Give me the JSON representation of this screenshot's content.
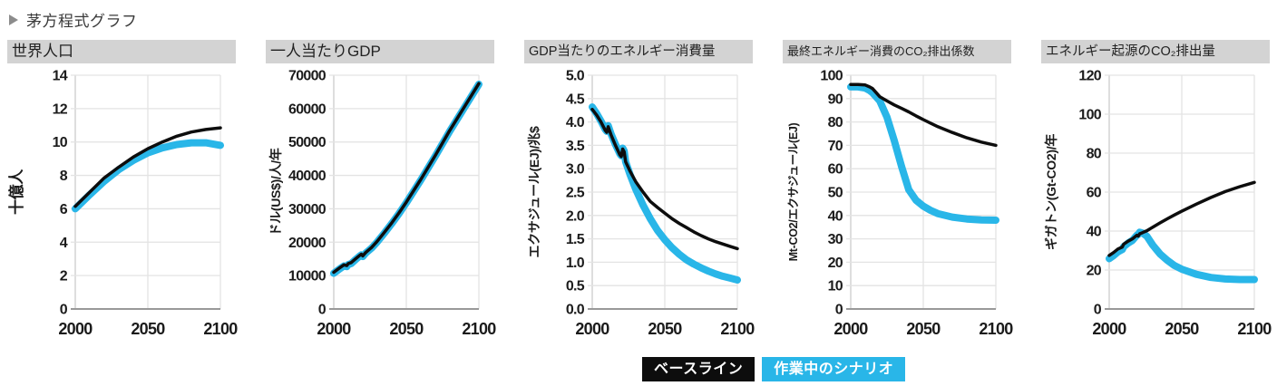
{
  "header": {
    "title": "茅方程式グラフ"
  },
  "colors": {
    "background": "#ffffff",
    "panel_title_bg": "#d3d3d3",
    "panel_title_text": "#222222",
    "grid": "#e3e3e3",
    "axis": "#999999",
    "left_axis": "#cccccc",
    "tick_text": "#1b1b1b",
    "baseline": "#0d0d0d",
    "scenario": "#29b6e8"
  },
  "legend": {
    "items": [
      {
        "label": "ベースライン",
        "color": "#0d0d0d",
        "text_color": "#ffffff"
      },
      {
        "label": "作業中のシナリオ",
        "color": "#29b6e8",
        "text_color": "#ffffff"
      }
    ]
  },
  "chart_data": [
    {
      "type": "line",
      "title": "世界人口",
      "ylabel": "十億人",
      "ylim": [
        0,
        14
      ],
      "ytick_step": 2,
      "y_decimals": 0,
      "xlim": [
        2000,
        2100
      ],
      "xticks": [
        2000,
        2050,
        2100
      ],
      "grid": true,
      "legend_position": "shared-bottom",
      "series": [
        {
          "name": "ベースライン",
          "color": "#0d0d0d",
          "width": 3.5,
          "x": [
            2000,
            2010,
            2020,
            2030,
            2040,
            2050,
            2060,
            2070,
            2080,
            2090,
            2100
          ],
          "y": [
            6.15,
            7.0,
            7.85,
            8.5,
            9.1,
            9.6,
            10.0,
            10.35,
            10.6,
            10.75,
            10.85
          ]
        },
        {
          "name": "作業中のシナリオ",
          "color": "#29b6e8",
          "width": 8,
          "x": [
            2000,
            2010,
            2020,
            2030,
            2040,
            2050,
            2060,
            2070,
            2080,
            2090,
            2100
          ],
          "y": [
            6.0,
            6.85,
            7.65,
            8.35,
            8.9,
            9.35,
            9.65,
            9.85,
            9.95,
            9.95,
            9.8
          ]
        }
      ]
    },
    {
      "type": "line",
      "title": "一人当たりGDP",
      "ylabel": "ドル(US$)/人/年",
      "ylim": [
        0,
        70000
      ],
      "ytick_step": 10000,
      "y_decimals": 0,
      "xlim": [
        2000,
        2100
      ],
      "xticks": [
        2000,
        2050,
        2100
      ],
      "grid": true,
      "legend_position": "shared-bottom",
      "series": [
        {
          "name": "ベースライン",
          "color": "#0d0d0d",
          "width": 3.5,
          "x": [
            2000,
            2004,
            2007,
            2009,
            2010,
            2012,
            2015,
            2018,
            2019,
            2020,
            2022,
            2026,
            2030,
            2035,
            2040,
            2045,
            2050,
            2060,
            2070,
            2080,
            2090,
            2100
          ],
          "y": [
            11000,
            12300,
            13200,
            13000,
            13600,
            13900,
            15000,
            16100,
            16400,
            15900,
            16900,
            18400,
            20300,
            23000,
            25800,
            28800,
            32000,
            38800,
            46000,
            53500,
            60500,
            67500
          ]
        },
        {
          "name": "作業中のシナリオ",
          "color": "#29b6e8",
          "width": 8,
          "x": [
            2000,
            2004,
            2007,
            2009,
            2010,
            2012,
            2015,
            2018,
            2019,
            2020,
            2022,
            2026,
            2030,
            2035,
            2040,
            2045,
            2050,
            2060,
            2070,
            2080,
            2090,
            2100
          ],
          "y": [
            10700,
            12000,
            12900,
            12700,
            13300,
            13600,
            14800,
            15900,
            16200,
            15700,
            16700,
            18200,
            20100,
            22800,
            25600,
            28600,
            31800,
            38600,
            45800,
            53300,
            60300,
            67300
          ]
        }
      ]
    },
    {
      "type": "line",
      "title": "GDP当たりのエネルギー消費量",
      "ylabel": "エクサジュール(EJ)/兆$",
      "ylim": [
        0,
        5
      ],
      "ytick_step": 0.5,
      "y_decimals": 1,
      "xlim": [
        2000,
        2100
      ],
      "xticks": [
        2000,
        2050,
        2100
      ],
      "grid": true,
      "legend_position": "shared-bottom",
      "series": [
        {
          "name": "ベースライン",
          "color": "#0d0d0d",
          "width": 3.5,
          "x": [
            2000,
            2003,
            2006,
            2009,
            2010,
            2011,
            2013,
            2016,
            2019,
            2020,
            2021,
            2022,
            2023,
            2026,
            2030,
            2035,
            2040,
            2045,
            2050,
            2055,
            2060,
            2065,
            2070,
            2075,
            2080,
            2085,
            2090,
            2095,
            2100
          ],
          "y": [
            4.27,
            4.15,
            4.0,
            3.82,
            3.78,
            3.9,
            3.72,
            3.5,
            3.3,
            3.26,
            3.42,
            3.36,
            3.15,
            2.95,
            2.72,
            2.5,
            2.3,
            2.17,
            2.05,
            1.93,
            1.83,
            1.74,
            1.65,
            1.57,
            1.5,
            1.44,
            1.39,
            1.34,
            1.29
          ]
        },
        {
          "name": "作業中のシナリオ",
          "color": "#29b6e8",
          "width": 8,
          "x": [
            2000,
            2003,
            2006,
            2009,
            2010,
            2011,
            2013,
            2016,
            2019,
            2020,
            2021,
            2022,
            2023,
            2026,
            2030,
            2035,
            2040,
            2045,
            2050,
            2055,
            2060,
            2065,
            2070,
            2075,
            2080,
            2085,
            2090,
            2095,
            2100
          ],
          "y": [
            4.32,
            4.18,
            4.02,
            3.84,
            3.8,
            3.92,
            3.74,
            3.52,
            3.32,
            3.28,
            3.44,
            3.38,
            3.15,
            2.88,
            2.56,
            2.22,
            1.93,
            1.68,
            1.48,
            1.31,
            1.17,
            1.05,
            0.96,
            0.88,
            0.81,
            0.75,
            0.7,
            0.66,
            0.62
          ]
        }
      ]
    },
    {
      "type": "line",
      "title": "最終エネルギー消費のCO₂排出係数",
      "ylabel": "Mt-CO2/エクサジュール(EJ)",
      "ylim": [
        0,
        100
      ],
      "ytick_step": 10,
      "y_decimals": 0,
      "xlim": [
        2000,
        2100
      ],
      "xticks": [
        2000,
        2050,
        2100
      ],
      "grid": true,
      "legend_position": "shared-bottom",
      "series": [
        {
          "name": "ベースライン",
          "color": "#0d0d0d",
          "width": 3.5,
          "x": [
            2000,
            2005,
            2010,
            2013,
            2015,
            2020,
            2025,
            2030,
            2035,
            2040,
            2045,
            2050,
            2055,
            2060,
            2070,
            2080,
            2090,
            2100
          ],
          "y": [
            96,
            96,
            95.8,
            95,
            94.3,
            90.8,
            89,
            87.3,
            85.8,
            84.3,
            82.6,
            81,
            79.5,
            78,
            75.5,
            73.2,
            71.4,
            70
          ]
        },
        {
          "name": "作業中のシナリオ",
          "color": "#29b6e8",
          "width": 8,
          "x": [
            2000,
            2005,
            2010,
            2013,
            2015,
            2020,
            2025,
            2030,
            2035,
            2040,
            2045,
            2050,
            2055,
            2060,
            2070,
            2080,
            2090,
            2100
          ],
          "y": [
            95,
            95,
            94.5,
            93.5,
            92.5,
            89,
            82,
            72,
            61,
            51,
            46.5,
            44,
            42.2,
            40.8,
            39.3,
            38.5,
            38.1,
            38
          ]
        }
      ]
    },
    {
      "type": "line",
      "title": "エネルギー起源のCO₂排出量",
      "ylabel": "ギガトン(Gt-CO2)/年",
      "ylim": [
        0,
        120
      ],
      "ytick_step": 20,
      "y_decimals": 0,
      "xlim": [
        2000,
        2100
      ],
      "xticks": [
        2000,
        2050,
        2100
      ],
      "grid": true,
      "legend_position": "shared-bottom",
      "series": [
        {
          "name": "ベースライン",
          "color": "#0d0d0d",
          "width": 3.5,
          "x": [
            2000,
            2003,
            2006,
            2009,
            2010,
            2013,
            2016,
            2019,
            2020,
            2021,
            2023,
            2026,
            2030,
            2035,
            2040,
            2045,
            2050,
            2060,
            2070,
            2080,
            2090,
            2100
          ],
          "y": [
            27.5,
            29,
            30.8,
            31.8,
            33.3,
            34.8,
            36,
            37.8,
            37.4,
            38.6,
            39.2,
            40.2,
            42,
            44.2,
            46.3,
            48.3,
            50.2,
            53.8,
            57.2,
            60.3,
            62.8,
            65
          ]
        },
        {
          "name": "作業中のシナリオ",
          "color": "#29b6e8",
          "width": 8,
          "x": [
            2000,
            2003,
            2006,
            2009,
            2010,
            2013,
            2016,
            2019,
            2020,
            2021,
            2023,
            2026,
            2030,
            2035,
            2040,
            2045,
            2050,
            2060,
            2070,
            2080,
            2090,
            2100
          ],
          "y": [
            25.8,
            27.4,
            29.3,
            30.5,
            32,
            33.8,
            35.2,
            37.8,
            38.3,
            39.4,
            39,
            37.3,
            32.8,
            28.3,
            25,
            22.3,
            20.4,
            17.8,
            16.2,
            15.4,
            15.1,
            15.1
          ]
        }
      ]
    }
  ]
}
